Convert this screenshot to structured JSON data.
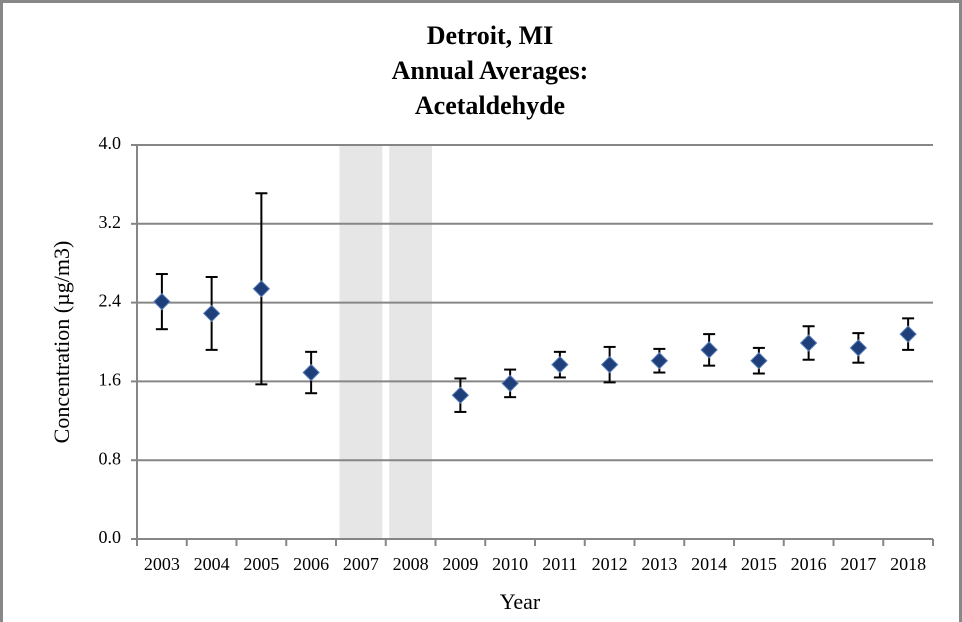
{
  "chart_data": {
    "type": "scatter",
    "title": [
      "Detroit, MI",
      "Annual Averages:",
      "Acetaldehyde"
    ],
    "x_label": "Year",
    "y_label": "Concentration (µg/m3)",
    "categories": [
      "2003",
      "2004",
      "2005",
      "2006",
      "2007",
      "2008",
      "2009",
      "2010",
      "2011",
      "2012",
      "2013",
      "2014",
      "2015",
      "2016",
      "2017",
      "2018"
    ],
    "values": [
      2.41,
      2.29,
      2.54,
      1.69,
      null,
      null,
      1.46,
      1.58,
      1.77,
      1.77,
      1.81,
      1.92,
      1.81,
      1.99,
      1.94,
      2.08
    ],
    "errors": [
      0.28,
      0.37,
      0.97,
      0.21,
      null,
      null,
      0.17,
      0.14,
      0.13,
      0.18,
      0.12,
      0.16,
      0.13,
      0.17,
      0.15,
      0.16
    ],
    "color": "#1f3f7a",
    "ylim": [
      0,
      4
    ],
    "yticks": [
      {
        "value": 0,
        "label": "0.0"
      },
      0.8,
      1.6,
      2.4,
      3.2,
      {
        "value": 4,
        "label": "4.0"
      }
    ],
    "grid": true
  }
}
